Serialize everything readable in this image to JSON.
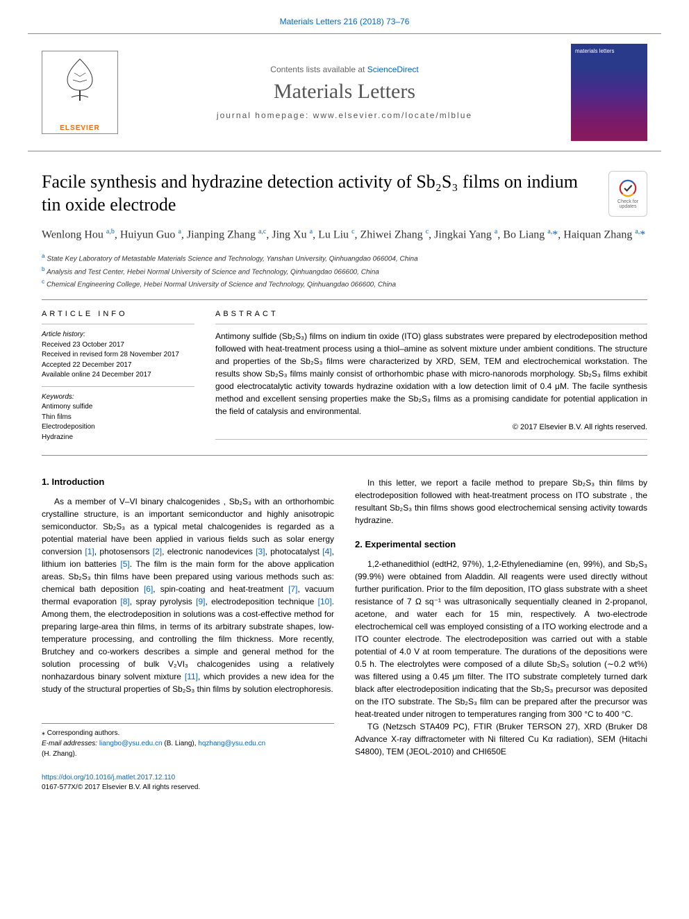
{
  "top_link": "Materials Letters 216 (2018) 73–76",
  "banner": {
    "sd_prefix": "Contents lists available at ",
    "sd_link": "ScienceDirect",
    "journal": "Materials Letters",
    "homepage": "journal homepage: www.elsevier.com/locate/mlblue",
    "publisher": "ELSEVIER",
    "cover_title": "materials letters"
  },
  "title": "Facile synthesis and hydrazine detection activity of Sb₂S₃ films on indium tin oxide electrode",
  "check_badge": "Check for updates",
  "authors_html": "Wenlong Hou <sup>a,b</sup>, Huiyun Guo <sup>a</sup>, Jianping Zhang <sup>a,c</sup>, Jing Xu <sup>a</sup>, Lu Liu <sup>c</sup>, Zhiwei Zhang <sup>c</sup>, Jingkai Yang <sup>a</sup>, Bo Liang <sup>a,</sup><span class='corr'>*</span>, Haiquan Zhang <sup>a,</sup><span class='corr'>*</span>",
  "affiliations": {
    "a": "State Key Laboratory of Metastable Materials Science and Technology, Yanshan University, Qinhuangdao 066004, China",
    "b": "Analysis and Test Center, Hebei Normal University of Science and Technology, Qinhuangdao 066600, China",
    "c": "Chemical Engineering College, Hebei Normal University of Science and Technology, Qinhuangdao 066600, China"
  },
  "article_info": {
    "heading": "ARTICLE INFO",
    "history_heading": "Article history:",
    "history": "Received 23 October 2017\nReceived in revised form 28 November 2017\nAccepted 22 December 2017\nAvailable online 24 December 2017",
    "keywords_heading": "Keywords:",
    "keywords": "Antimony sulfide\nThin films\nElectrodeposition\nHydrazine"
  },
  "abstract": {
    "heading": "ABSTRACT",
    "text": "Antimony sulfide (Sb₂S₃) films on indium tin oxide (ITO) glass substrates were prepared by electrodeposition method followed with heat-treatment process using a thiol–amine as solvent mixture under ambient conditions. The structure and properties of the Sb₂S₃ films were characterized by XRD, SEM, TEM and electrochemical workstation. The results show Sb₂S₃ films mainly consist of orthorhombic phase with micro-nanorods morphology. Sb₂S₃ films exhibit good electrocatalytic activity towards hydrazine oxidation with a low detection limit of 0.4 μM. The facile synthesis method and excellent sensing properties make the Sb₂S₃ films as a promising candidate for potential application in the field of catalysis and environmental.",
    "copyright": "© 2017 Elsevier B.V. All rights reserved."
  },
  "body": {
    "sec1_heading": "1. Introduction",
    "sec1_p1": "As a member of V–VI binary chalcogenides , Sb₂S₃ with an orthorhombic crystalline structure, is an important semiconductor and highly anisotropic semiconductor. Sb₂S₃ as a typical metal chalcogenides is regarded as a potential material have been applied in various fields such as solar energy conversion <span class='cite'>[1]</span>, photosensors <span class='cite'>[2]</span>, electronic nanodevices <span class='cite'>[3]</span>, photocatalyst <span class='cite'>[4]</span>, lithium ion batteries <span class='cite'>[5]</span>. The film is the main form for the above application areas. Sb₂S₃ thin films have been prepared using various methods such as: chemical bath deposition <span class='cite'>[6]</span>, spin-coating and heat-treatment <span class='cite'>[7]</span>, vacuum thermal evaporation <span class='cite'>[8]</span>, spray pyrolysis <span class='cite'>[9]</span>, electrodeposition technique <span class='cite'>[10]</span>. Among them, the electrodeposition in solutions was a cost-effective method for preparing large-area thin films, in terms of its arbitrary substrate shapes, low-temperature processing, and controlling the film thickness. More recently, Brutchey and co-workers describes a simple and general method for the solution processing of bulk V₂VI₃ chalcogenides using a relatively nonhazardous binary solvent mixture <span class='cite'>[11]</span>, which provides a new idea for the study of the structural properties of Sb₂S₃ thin films by solution electrophoresis.",
    "col2_p1": "In this letter, we report a facile method to prepare Sb₂S₃ thin films by electrodeposition followed with heat-treatment process on ITO substrate , the resultant Sb₂S₃ thin films shows good electrochemical sensing activity towards hydrazine.",
    "sec2_heading": "2. Experimental section",
    "sec2_p1": "1,2-ethanedithiol (edtH2, 97%), 1,2-Ethylenediamine (en, 99%), and Sb₂S₃ (99.9%) were obtained from Aladdin. All reagents were used directly without further purification. Prior to the film deposition, ITO glass substrate with a sheet resistance of 7 Ω sq⁻¹ was ultrasonically sequentially cleaned in 2-propanol, acetone, and water each for 15 min, respectively. A two-electrode electrochemical cell was employed consisting of a ITO working electrode and a ITO counter electrode. The electrodeposition was carried out with a stable potential of 4.0 V at room temperature. The durations of the depositions were 0.5 h. The electrolytes were composed of a dilute Sb₂S₃ solution (∼0.2 wt%) was filtered using a 0.45 μm filter. The ITO substrate completely turned dark black after electrodeposition indicating that the Sb₂S₃ precursor was deposited on the ITO substrate. The Sb₂S₃ film can be prepared after the precursor was heat-treated under nitrogen to temperatures ranging from 300 °C to 400 °C.",
    "sec2_p2": "TG (Netzsch STA409 PC), FTIR (Bruker TERSON 27), XRD (Bruker D8 Advance X-ray diffractometer with Ni filtered Cu Kα radiation), SEM (Hitachi S4800), TEM (JEOL-2010) and CHI650E"
  },
  "footer": {
    "corr": "⁎ Corresponding authors.",
    "emails_prefix": "E-mail addresses: ",
    "email1": "liangbo@ysu.edu.cn",
    "email1_name": " (B. Liang), ",
    "email2": "hqzhang@ysu.edu.cn",
    "email2_name": " (H. Zhang).",
    "doi": "https://doi.org/10.1016/j.matlet.2017.12.110",
    "issn": "0167-577X/© 2017 Elsevier B.V. All rights reserved."
  },
  "colors": {
    "link": "#0066cc",
    "elsevier_orange": "#ff6600",
    "rule": "#888888",
    "text": "#000000"
  }
}
